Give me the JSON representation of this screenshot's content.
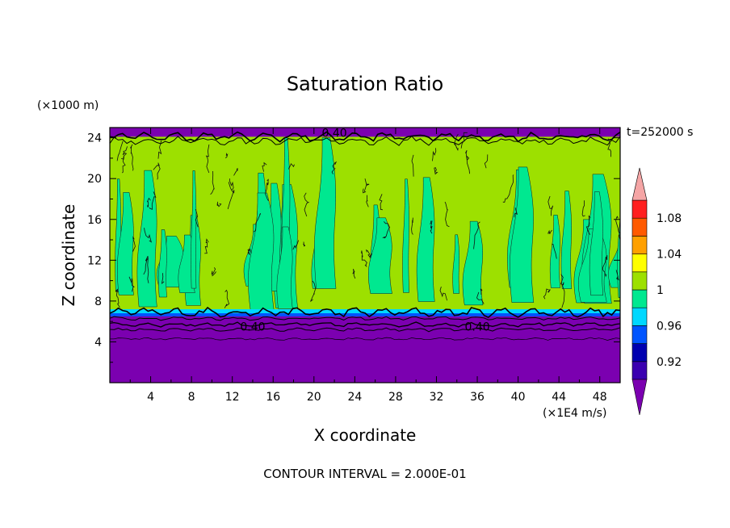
{
  "chart_data": {
    "type": "heatmap",
    "title": "Saturation Ratio",
    "xlabel": "X coordinate",
    "ylabel": "Z coordinate",
    "x_unit": "(×1E4 m/s)",
    "y_unit": "(×1000 m)",
    "time_label": "t=252000 s",
    "contour_interval_label": "CONTOUR INTERVAL = 2.000E-01",
    "xlim": [
      0,
      50
    ],
    "ylim": [
      0,
      25
    ],
    "x_ticks": [
      4,
      8,
      12,
      16,
      20,
      24,
      28,
      32,
      36,
      40,
      44,
      48
    ],
    "y_ticks": [
      4,
      8,
      12,
      16,
      20,
      24
    ],
    "contour_labels": [
      {
        "text": "0.40",
        "x": 14,
        "z": 5.5
      },
      {
        "text": "0.40",
        "x": 36,
        "z": 5.5
      },
      {
        "text": "0.40",
        "x": 22,
        "z": 24.5
      }
    ],
    "layers": [
      {
        "name": "lower",
        "z_from": 0,
        "z_to": 4.5,
        "color": "#7b00b0"
      },
      {
        "name": "transition",
        "z_from": 4.5,
        "z_to": 7,
        "color": "#7b00b0"
      },
      {
        "name": "cloud",
        "z_from": 7,
        "z_to": 24,
        "color": "#9de000"
      },
      {
        "name": "top",
        "z_from": 24,
        "z_to": 25,
        "color": "#7b00b0"
      }
    ],
    "colorbar": {
      "labels": [
        "1.08",
        "1.04",
        "1",
        "0.96",
        "0.92"
      ],
      "levels": [
        0.9,
        0.92,
        0.94,
        0.96,
        0.98,
        1.0,
        1.02,
        1.04,
        1.06,
        1.08,
        1.1
      ],
      "colors": [
        "#3a00b0",
        "#0000b0",
        "#0055ff",
        "#00d8ff",
        "#00e890",
        "#9de000",
        "#ffff00",
        "#ffa000",
        "#ff5a00",
        "#ff2020"
      ],
      "under_color": "#7b00b0",
      "over_color": "#f5a5a5"
    }
  }
}
